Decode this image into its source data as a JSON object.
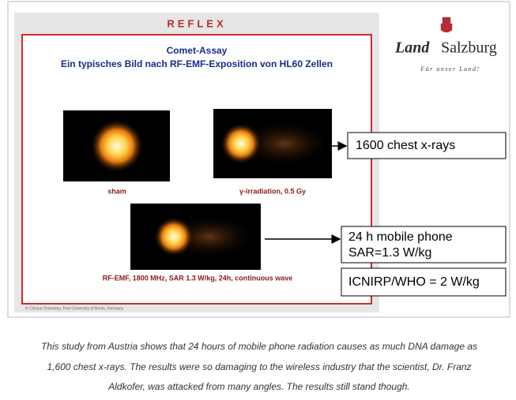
{
  "slide": {
    "header": "REFLEX",
    "title": "Comet-Assay",
    "subtitle": "Ein typisches Bild nach RF-EMF-Exposition von HL60 Zellen",
    "images": [
      {
        "label": "sham"
      },
      {
        "label": "γ-irradiation, 0.5 Gy"
      },
      {
        "label": "RF-EMF, 1800 MHz, SAR 1.3 W/kg, 24h, continuous wave"
      }
    ],
    "footer": "© Clinical Chemistry, Free University of Berlin, Germany"
  },
  "logo": {
    "name_italic": "Land",
    "name": "Salzburg",
    "tagline": "Für unser Land!"
  },
  "callouts": [
    "1600 chest x-rays",
    "24 h mobile phone",
    "SAR=1.3 W/kg",
    "ICNIRP/WHO = 2 W/kg"
  ],
  "caption": [
    "This study from Austria shows that 24 hours of mobile phone radiation causes as much DNA damage as",
    "1,600 chest x-rays. The results were so damaging to the wireless industry that the scientist, Dr. Franz",
    "Aldkofer, was attacked from many angles. The results still stand though."
  ]
}
